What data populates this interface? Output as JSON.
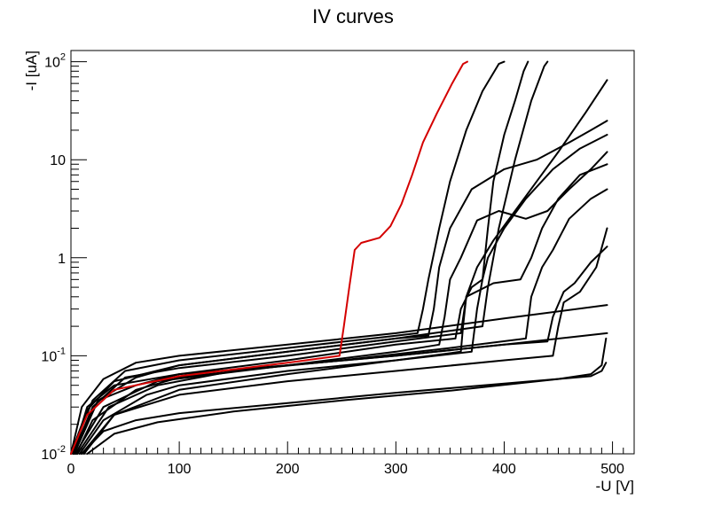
{
  "chart_data": {
    "type": "line",
    "title": "IV curves",
    "xlabel": "-U [V]",
    "ylabel": "-I [uA]",
    "xlim": [
      0,
      520
    ],
    "ylim": [
      0.01,
      130
    ],
    "yscale": "log",
    "grid": false,
    "legend": "none",
    "x_ticks": [
      {
        "value": 0,
        "label": "0"
      },
      {
        "value": 100,
        "label": "100"
      },
      {
        "value": 200,
        "label": "200"
      },
      {
        "value": 300,
        "label": "300"
      },
      {
        "value": 400,
        "label": "400"
      },
      {
        "value": 500,
        "label": "500"
      }
    ],
    "y_ticks": [
      {
        "value": 0.01,
        "base": "10",
        "exp": "-2",
        "text": ""
      },
      {
        "value": 0.1,
        "base": "10",
        "exp": "-1",
        "text": ""
      },
      {
        "value": 1,
        "base": "",
        "exp": "",
        "text": "1"
      },
      {
        "value": 10,
        "base": "",
        "exp": "",
        "text": "10"
      },
      {
        "value": 100,
        "base": "10",
        "exp": "2",
        "text": ""
      }
    ],
    "series": [
      {
        "color": "#d40000",
        "points": [
          [
            0,
            0.01
          ],
          [
            15,
            0.025
          ],
          [
            40,
            0.045
          ],
          [
            100,
            0.062
          ],
          [
            200,
            0.085
          ],
          [
            248,
            0.1
          ],
          [
            252,
            0.2
          ],
          [
            257,
            0.5
          ],
          [
            262,
            1.2
          ],
          [
            268,
            1.42
          ],
          [
            285,
            1.6
          ],
          [
            295,
            2.1
          ],
          [
            305,
            3.5
          ],
          [
            315,
            7
          ],
          [
            325,
            15
          ],
          [
            338,
            30
          ],
          [
            352,
            60
          ],
          [
            362,
            95
          ],
          [
            366,
            100
          ]
        ]
      },
      {
        "color": "#000000",
        "points": [
          [
            0,
            0.01
          ],
          [
            10,
            0.03
          ],
          [
            30,
            0.058
          ],
          [
            60,
            0.085
          ],
          [
            100,
            0.1
          ],
          [
            200,
            0.13
          ],
          [
            300,
            0.17
          ],
          [
            400,
            0.24
          ],
          [
            495,
            0.33
          ]
        ]
      },
      {
        "color": "#000000",
        "points": [
          [
            2,
            0.01
          ],
          [
            15,
            0.03
          ],
          [
            40,
            0.05
          ],
          [
            100,
            0.065
          ],
          [
            200,
            0.08
          ],
          [
            300,
            0.1
          ],
          [
            400,
            0.13
          ],
          [
            495,
            0.17
          ]
        ]
      },
      {
        "color": "#000000",
        "points": [
          [
            10,
            0.01
          ],
          [
            30,
            0.017
          ],
          [
            60,
            0.022
          ],
          [
            100,
            0.026
          ],
          [
            200,
            0.033
          ],
          [
            300,
            0.042
          ],
          [
            400,
            0.052
          ],
          [
            480,
            0.062
          ],
          [
            490,
            0.07
          ],
          [
            494,
            0.085
          ]
        ]
      },
      {
        "color": "#000000",
        "points": [
          [
            15,
            0.01
          ],
          [
            40,
            0.016
          ],
          [
            80,
            0.021
          ],
          [
            150,
            0.027
          ],
          [
            250,
            0.035
          ],
          [
            350,
            0.044
          ],
          [
            450,
            0.058
          ],
          [
            480,
            0.065
          ],
          [
            490,
            0.08
          ],
          [
            494,
            0.15
          ]
        ]
      },
      {
        "color": "#000000",
        "points": [
          [
            0,
            0.01
          ],
          [
            15,
            0.028
          ],
          [
            40,
            0.055
          ],
          [
            100,
            0.08
          ],
          [
            200,
            0.11
          ],
          [
            300,
            0.15
          ],
          [
            330,
            0.16
          ],
          [
            335,
            0.3
          ],
          [
            340,
            0.8
          ],
          [
            350,
            2
          ],
          [
            370,
            5
          ],
          [
            400,
            8
          ],
          [
            430,
            10
          ],
          [
            460,
            15
          ],
          [
            480,
            20
          ],
          [
            495,
            25
          ]
        ]
      },
      {
        "color": "#000000",
        "points": [
          [
            5,
            0.01
          ],
          [
            20,
            0.022
          ],
          [
            60,
            0.045
          ],
          [
            100,
            0.06
          ],
          [
            200,
            0.08
          ],
          [
            300,
            0.11
          ],
          [
            340,
            0.13
          ],
          [
            345,
            0.25
          ],
          [
            350,
            0.6
          ],
          [
            360,
            1
          ],
          [
            375,
            2.4
          ],
          [
            395,
            3
          ],
          [
            420,
            2.5
          ],
          [
            440,
            3
          ],
          [
            460,
            5
          ],
          [
            480,
            8
          ],
          [
            495,
            12
          ]
        ]
      },
      {
        "color": "#000000",
        "points": [
          [
            0,
            0.01
          ],
          [
            25,
            0.035
          ],
          [
            60,
            0.05
          ],
          [
            100,
            0.065
          ],
          [
            200,
            0.09
          ],
          [
            300,
            0.13
          ],
          [
            355,
            0.15
          ],
          [
            360,
            0.3
          ],
          [
            370,
            0.5
          ],
          [
            380,
            0.6
          ],
          [
            385,
            2
          ],
          [
            390,
            6
          ],
          [
            400,
            18
          ],
          [
            410,
            40
          ],
          [
            418,
            80
          ],
          [
            422,
            100
          ]
        ]
      },
      {
        "color": "#000000",
        "points": [
          [
            2,
            0.01
          ],
          [
            20,
            0.03
          ],
          [
            50,
            0.06
          ],
          [
            100,
            0.075
          ],
          [
            200,
            0.1
          ],
          [
            300,
            0.14
          ],
          [
            360,
            0.17
          ],
          [
            365,
            0.4
          ],
          [
            375,
            0.8
          ],
          [
            390,
            1.5
          ],
          [
            410,
            3
          ],
          [
            430,
            6
          ],
          [
            450,
            12
          ],
          [
            475,
            30
          ],
          [
            495,
            65
          ]
        ]
      },
      {
        "color": "#000000",
        "points": [
          [
            8,
            0.01
          ],
          [
            30,
            0.022
          ],
          [
            70,
            0.04
          ],
          [
            100,
            0.05
          ],
          [
            200,
            0.07
          ],
          [
            300,
            0.09
          ],
          [
            370,
            0.11
          ],
          [
            375,
            0.3
          ],
          [
            380,
            0.6
          ],
          [
            385,
            1
          ],
          [
            400,
            2
          ],
          [
            420,
            4
          ],
          [
            445,
            8
          ],
          [
            470,
            13
          ],
          [
            495,
            18
          ]
        ]
      },
      {
        "color": "#000000",
        "points": [
          [
            12,
            0.01
          ],
          [
            40,
            0.025
          ],
          [
            100,
            0.045
          ],
          [
            200,
            0.065
          ],
          [
            300,
            0.09
          ],
          [
            360,
            0.11
          ],
          [
            362,
            0.2
          ],
          [
            365,
            0.4
          ],
          [
            390,
            0.55
          ],
          [
            415,
            0.6
          ],
          [
            425,
            1
          ],
          [
            435,
            2
          ],
          [
            450,
            4
          ],
          [
            470,
            7
          ],
          [
            495,
            9
          ]
        ]
      },
      {
        "color": "#000000",
        "points": [
          [
            3,
            0.01
          ],
          [
            25,
            0.035
          ],
          [
            60,
            0.06
          ],
          [
            100,
            0.08
          ],
          [
            200,
            0.11
          ],
          [
            300,
            0.15
          ],
          [
            380,
            0.2
          ],
          [
            385,
            0.5
          ],
          [
            395,
            2
          ],
          [
            410,
            10
          ],
          [
            425,
            40
          ],
          [
            437,
            90
          ],
          [
            440,
            100
          ]
        ]
      },
      {
        "color": "#000000",
        "points": [
          [
            6,
            0.01
          ],
          [
            35,
            0.03
          ],
          [
            80,
            0.05
          ],
          [
            150,
            0.07
          ],
          [
            250,
            0.09
          ],
          [
            350,
            0.12
          ],
          [
            420,
            0.15
          ],
          [
            425,
            0.4
          ],
          [
            435,
            0.8
          ],
          [
            445,
            1.2
          ],
          [
            460,
            2.5
          ],
          [
            480,
            4
          ],
          [
            495,
            5
          ]
        ]
      },
      {
        "color": "#000000",
        "points": [
          [
            10,
            0.01
          ],
          [
            40,
            0.025
          ],
          [
            100,
            0.04
          ],
          [
            200,
            0.055
          ],
          [
            300,
            0.07
          ],
          [
            400,
            0.09
          ],
          [
            445,
            0.1
          ],
          [
            450,
            0.2
          ],
          [
            455,
            0.35
          ],
          [
            470,
            0.45
          ],
          [
            485,
            0.8
          ],
          [
            495,
            2
          ]
        ]
      },
      {
        "color": "#000000",
        "points": [
          [
            4,
            0.01
          ],
          [
            30,
            0.03
          ],
          [
            80,
            0.055
          ],
          [
            200,
            0.08
          ],
          [
            300,
            0.1
          ],
          [
            400,
            0.13
          ],
          [
            440,
            0.14
          ],
          [
            445,
            0.25
          ],
          [
            455,
            0.45
          ],
          [
            465,
            0.55
          ],
          [
            480,
            0.9
          ],
          [
            495,
            1.3
          ]
        ]
      },
      {
        "color": "#000000",
        "points": [
          [
            0,
            0.01
          ],
          [
            20,
            0.035
          ],
          [
            50,
            0.07
          ],
          [
            100,
            0.09
          ],
          [
            200,
            0.12
          ],
          [
            300,
            0.16
          ],
          [
            320,
            0.17
          ],
          [
            325,
            0.3
          ],
          [
            330,
            0.6
          ],
          [
            340,
            2
          ],
          [
            350,
            6
          ],
          [
            365,
            20
          ],
          [
            380,
            50
          ],
          [
            395,
            95
          ],
          [
            400,
            100
          ]
        ]
      }
    ]
  }
}
